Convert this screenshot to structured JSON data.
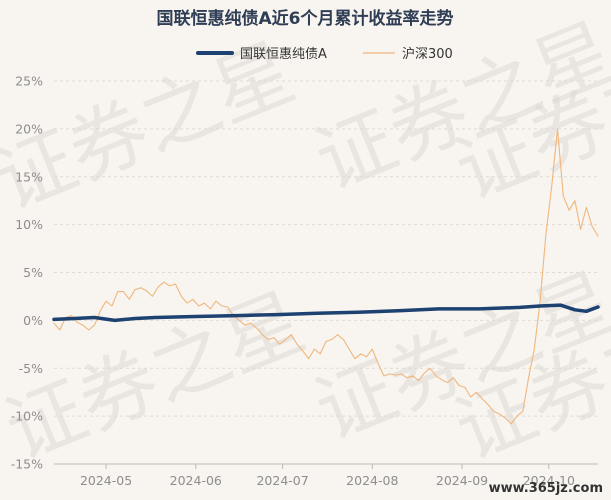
{
  "colors": {
    "background": "#f8f4ef",
    "fund_line": "#1d4170",
    "index_line": "#efb77e",
    "grid": "#dedad5",
    "title": "#2f3d55",
    "tick": "#8e8e8e"
  },
  "watermark": {
    "text": "证券之星",
    "source_tag": "www.365jz.com"
  },
  "chart_data": {
    "type": "line",
    "title": "国联恒惠纯债A近6个月累计收益率走势",
    "legend_position": "top-center",
    "grid": true,
    "y_unit": "%",
    "ylim": [
      -15,
      25
    ],
    "y_ticks": [
      "25%",
      "20%",
      "15%",
      "10%",
      "5%",
      "0%",
      "-5%",
      "-10%",
      "-15%"
    ],
    "x_range": [
      "2024-04-13",
      "2024-10-18"
    ],
    "x_ticks": [
      {
        "label": "2024-05",
        "date": "2024-05-01"
      },
      {
        "label": "2024-06",
        "date": "2024-06-01"
      },
      {
        "label": "2024-07",
        "date": "2024-07-01"
      },
      {
        "label": "2024-08",
        "date": "2024-08-01"
      },
      {
        "label": "2024-09",
        "date": "2024-09-01"
      },
      {
        "label": "2024-10",
        "date": "2024-10-01"
      }
    ],
    "series": [
      {
        "name": "国联恒惠纯债A",
        "color": "#1d4170",
        "points": [
          [
            "2024-04-13",
            0.1
          ],
          [
            "2024-04-20",
            0.2
          ],
          [
            "2024-04-27",
            0.3
          ],
          [
            "2024-05-04",
            0.0
          ],
          [
            "2024-05-11",
            0.2
          ],
          [
            "2024-05-18",
            0.3
          ],
          [
            "2024-05-25",
            0.35
          ],
          [
            "2024-06-01",
            0.4
          ],
          [
            "2024-06-15",
            0.5
          ],
          [
            "2024-06-29",
            0.6
          ],
          [
            "2024-07-13",
            0.75
          ],
          [
            "2024-07-27",
            0.85
          ],
          [
            "2024-08-10",
            1.0
          ],
          [
            "2024-08-24",
            1.2
          ],
          [
            "2024-09-07",
            1.2
          ],
          [
            "2024-09-21",
            1.35
          ],
          [
            "2024-09-28",
            1.5
          ],
          [
            "2024-10-05",
            1.6
          ],
          [
            "2024-10-10",
            1.1
          ],
          [
            "2024-10-14",
            0.95
          ],
          [
            "2024-10-18",
            1.4
          ]
        ]
      },
      {
        "name": "沪深300",
        "color": "#efb77e",
        "points": [
          [
            "2024-04-13",
            -0.3
          ],
          [
            "2024-04-15",
            -1.0
          ],
          [
            "2024-04-17",
            0.3
          ],
          [
            "2024-04-19",
            0.5
          ],
          [
            "2024-04-21",
            -0.2
          ],
          [
            "2024-04-23",
            -0.5
          ],
          [
            "2024-04-25",
            -1.0
          ],
          [
            "2024-04-27",
            -0.5
          ],
          [
            "2024-04-29",
            1.0
          ],
          [
            "2024-05-01",
            2.0
          ],
          [
            "2024-05-03",
            1.5
          ],
          [
            "2024-05-05",
            3.0
          ],
          [
            "2024-05-07",
            3.0
          ],
          [
            "2024-05-09",
            2.2
          ],
          [
            "2024-05-11",
            3.2
          ],
          [
            "2024-05-13",
            3.4
          ],
          [
            "2024-05-15",
            3.1
          ],
          [
            "2024-05-17",
            2.5
          ],
          [
            "2024-05-19",
            3.5
          ],
          [
            "2024-05-21",
            4.0
          ],
          [
            "2024-05-23",
            3.6
          ],
          [
            "2024-05-25",
            3.8
          ],
          [
            "2024-05-27",
            2.5
          ],
          [
            "2024-05-29",
            1.8
          ],
          [
            "2024-05-31",
            2.2
          ],
          [
            "2024-06-02",
            1.5
          ],
          [
            "2024-06-04",
            1.8
          ],
          [
            "2024-06-06",
            1.2
          ],
          [
            "2024-06-08",
            2.0
          ],
          [
            "2024-06-10",
            1.5
          ],
          [
            "2024-06-12",
            1.4
          ],
          [
            "2024-06-14",
            0.5
          ],
          [
            "2024-06-16",
            0.0
          ],
          [
            "2024-06-18",
            -0.5
          ],
          [
            "2024-06-20",
            -0.3
          ],
          [
            "2024-06-22",
            -0.8
          ],
          [
            "2024-06-24",
            -1.5
          ],
          [
            "2024-06-26",
            -2.0
          ],
          [
            "2024-06-28",
            -1.8
          ],
          [
            "2024-06-30",
            -2.5
          ],
          [
            "2024-07-02",
            -2.0
          ],
          [
            "2024-07-04",
            -1.5
          ],
          [
            "2024-07-06",
            -2.5
          ],
          [
            "2024-07-08",
            -3.2
          ],
          [
            "2024-07-10",
            -4.0
          ],
          [
            "2024-07-12",
            -3.0
          ],
          [
            "2024-07-14",
            -3.5
          ],
          [
            "2024-07-16",
            -2.2
          ],
          [
            "2024-07-18",
            -2.0
          ],
          [
            "2024-07-20",
            -1.5
          ],
          [
            "2024-07-22",
            -2.0
          ],
          [
            "2024-07-24",
            -3.0
          ],
          [
            "2024-07-26",
            -4.0
          ],
          [
            "2024-07-28",
            -3.5
          ],
          [
            "2024-07-30",
            -3.8
          ],
          [
            "2024-08-01",
            -3.0
          ],
          [
            "2024-08-03",
            -4.5
          ],
          [
            "2024-08-05",
            -5.8
          ],
          [
            "2024-08-07",
            -5.6
          ],
          [
            "2024-08-09",
            -5.7
          ],
          [
            "2024-08-11",
            -5.6
          ],
          [
            "2024-08-13",
            -6.0
          ],
          [
            "2024-08-15",
            -5.8
          ],
          [
            "2024-08-17",
            -6.3
          ],
          [
            "2024-08-19",
            -5.5
          ],
          [
            "2024-08-21",
            -5.0
          ],
          [
            "2024-08-23",
            -5.8
          ],
          [
            "2024-08-25",
            -6.2
          ],
          [
            "2024-08-27",
            -6.5
          ],
          [
            "2024-08-29",
            -6.0
          ],
          [
            "2024-08-31",
            -6.8
          ],
          [
            "2024-09-02",
            -7.0
          ],
          [
            "2024-09-04",
            -8.0
          ],
          [
            "2024-09-06",
            -7.5
          ],
          [
            "2024-09-08",
            -8.2
          ],
          [
            "2024-09-10",
            -8.8
          ],
          [
            "2024-09-12",
            -9.5
          ],
          [
            "2024-09-14",
            -9.8
          ],
          [
            "2024-09-16",
            -10.2
          ],
          [
            "2024-09-18",
            -10.8
          ],
          [
            "2024-09-20",
            -10.0
          ],
          [
            "2024-09-22",
            -9.5
          ],
          [
            "2024-09-24",
            -6.0
          ],
          [
            "2024-09-26",
            -3.0
          ],
          [
            "2024-09-28",
            2.0
          ],
          [
            "2024-09-30",
            9.0
          ],
          [
            "2024-10-02",
            14.0
          ],
          [
            "2024-10-04",
            20.0
          ],
          [
            "2024-10-06",
            13.0
          ],
          [
            "2024-10-08",
            11.5
          ],
          [
            "2024-10-10",
            12.5
          ],
          [
            "2024-10-12",
            9.5
          ],
          [
            "2024-10-14",
            11.8
          ],
          [
            "2024-10-16",
            9.8
          ],
          [
            "2024-10-18",
            8.8
          ]
        ]
      }
    ]
  }
}
